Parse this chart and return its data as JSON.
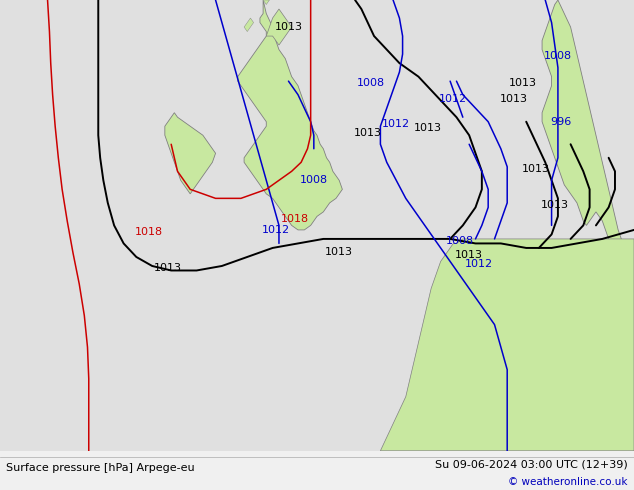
{
  "title_left": "Surface pressure [hPa] Arpege-eu",
  "title_right": "Su 09-06-2024 03:00 UTC (12+39)",
  "copyright": "© weatheronline.co.uk",
  "bg_color": "#e0e0e0",
  "land_color": "#c8e8a0",
  "coast_color": "#808080",
  "fig_width": 6.34,
  "fig_height": 4.9,
  "dpi": 100,
  "footer_fontsize": 8,
  "footer_color": "#000000",
  "copyright_color": "#0000bb"
}
